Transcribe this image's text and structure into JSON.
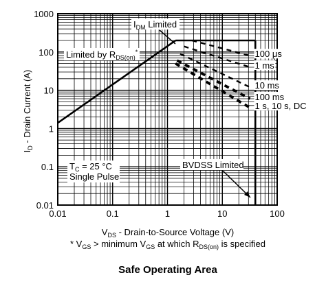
{
  "chart_data": {
    "type": "line",
    "title": "Safe Operating Area",
    "scale": {
      "x": "log",
      "y": "log"
    },
    "xlim": [
      0.01,
      100
    ],
    "ylim": [
      0.01,
      1000
    ],
    "grid": true,
    "x_ticks": [
      "0.01",
      "0.1",
      "1",
      "10",
      "100"
    ],
    "y_ticks": [
      "1000",
      "100",
      "10",
      "1",
      "0.1",
      "0.01"
    ],
    "xlabel": {
      "main": "V",
      "sub": "DS",
      "rest": " - Drain-to-Source Voltage (V)"
    },
    "ylabel": {
      "main": "I",
      "sub": "D",
      "rest": " - Drain Current (A)"
    },
    "footnote": {
      "p1": "* V",
      "s1": "GS",
      "p2": " > minimum V",
      "s2": "GS",
      "p3": " at which R",
      "s3": "DS(on)",
      "p4": " is specified"
    },
    "boundaries": [
      {
        "points": [
          [
            0.01,
            1.4
          ],
          [
            1.4,
            200
          ]
        ]
      },
      {
        "points": [
          [
            1.4,
            200
          ],
          [
            40,
            200
          ]
        ]
      },
      {
        "points": [
          [
            40,
            200
          ],
          [
            40,
            0.01
          ]
        ]
      }
    ],
    "pulse_curves": [
      {
        "label": "100 μs",
        "points": [
          [
            2.8,
            200
          ],
          [
            32,
            80
          ]
        ]
      },
      {
        "label": "1 ms",
        "points": [
          [
            2.0,
            140
          ],
          [
            32,
            40
          ]
        ]
      },
      {
        "label": "10 ms",
        "points": [
          [
            1.7,
            90
          ],
          [
            32,
            12
          ]
        ]
      },
      {
        "label": "100 ms",
        "points": [
          [
            1.5,
            60
          ],
          [
            32,
            6
          ]
        ]
      },
      {
        "label": "1 s, 10 s, DC",
        "points": [
          [
            1.4,
            50
          ],
          [
            32,
            3.5
          ]
        ]
      }
    ],
    "annotations": {
      "idm": {
        "main": "I",
        "sub": "DM",
        "rest": " Limited"
      },
      "rds": {
        "pre": "Limited by R",
        "sub": "DS(on)",
        "post": "*"
      },
      "bvdss": "BVDSS Limited",
      "tc": {
        "main": "T",
        "sub": "C",
        "rest": " = 25 °C"
      },
      "pulse": "Single Pulse"
    }
  }
}
